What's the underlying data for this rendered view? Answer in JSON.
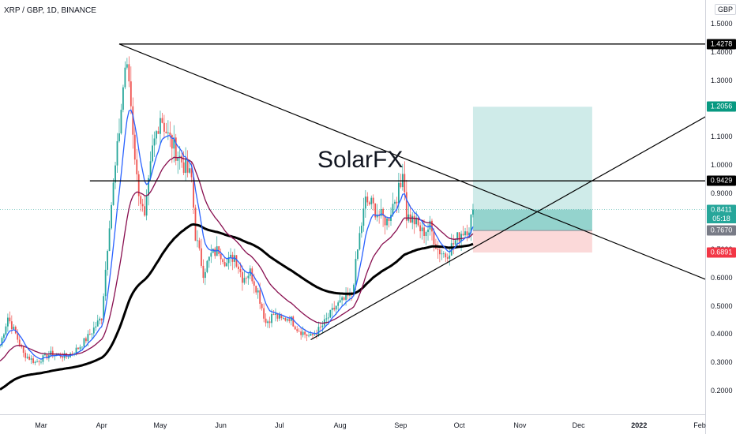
{
  "symbol_title": "XRP / GBP, 1D, BINANCE",
  "watermark": "SolarFX",
  "currency": "GBP",
  "colors": {
    "up": "#26a69a",
    "down": "#ef5350",
    "ema_fast": "#2962ff",
    "ema_mid": "#880e4f",
    "ema_slow": "#000000",
    "target_zone": "#26a69a",
    "stop_zone": "#ef5350"
  },
  "price_axis": {
    "min": 0.2,
    "max": 1.5,
    "ticks": [
      "1.5000",
      "1.4000",
      "1.3000",
      "1.2000",
      "1.1000",
      "1.0000",
      "0.9000",
      "0.8000",
      "0.7000",
      "0.6000",
      "0.5000",
      "0.4000",
      "0.3000",
      "0.2000"
    ],
    "labels": {
      "resistance_high": {
        "text": "1.4278",
        "value": 1.4278,
        "bg": "#000000"
      },
      "target": {
        "text": "1.2056",
        "value": 1.2056,
        "bg": "#089981"
      },
      "key_level": {
        "text": "0.9429",
        "value": 0.9429,
        "bg": "#000000"
      },
      "last_price": {
        "text": "0.8411",
        "value": 0.8411,
        "bg": "#26a69a"
      },
      "countdown": "05:18",
      "entry": {
        "text": "0.7670",
        "value": 0.767,
        "bg": "#787b86"
      },
      "stop": {
        "text": "0.6891",
        "value": 0.6891,
        "bg": "#f23645"
      }
    }
  },
  "time_axis": {
    "ticks": [
      {
        "label": "Mar",
        "day": 21,
        "bold": false
      },
      {
        "label": "Apr",
        "day": 52,
        "bold": false
      },
      {
        "label": "May",
        "day": 82,
        "bold": false
      },
      {
        "label": "Jun",
        "day": 113,
        "bold": false
      },
      {
        "label": "Jul",
        "day": 143,
        "bold": false
      },
      {
        "label": "Aug",
        "day": 174,
        "bold": false
      },
      {
        "label": "Sep",
        "day": 205,
        "bold": false
      },
      {
        "label": "Oct",
        "day": 235,
        "bold": false
      },
      {
        "label": "Nov",
        "day": 266,
        "bold": false
      },
      {
        "label": "Dec",
        "day": 296,
        "bold": false
      },
      {
        "label": "2022",
        "day": 327,
        "bold": true
      },
      {
        "label": "Feb",
        "day": 358,
        "bold": false
      }
    ]
  },
  "chart_data": {
    "type": "candlestick",
    "x_unit": "day index (daily bars)",
    "anchors": [
      {
        "day": 0,
        "price": 0.36
      },
      {
        "day": 4,
        "price": 0.46
      },
      {
        "day": 8,
        "price": 0.4
      },
      {
        "day": 12,
        "price": 0.33
      },
      {
        "day": 18,
        "price": 0.3
      },
      {
        "day": 26,
        "price": 0.33
      },
      {
        "day": 34,
        "price": 0.32
      },
      {
        "day": 40,
        "price": 0.35
      },
      {
        "day": 45,
        "price": 0.39
      },
      {
        "day": 52,
        "price": 0.46
      },
      {
        "day": 56,
        "price": 0.8
      },
      {
        "day": 60,
        "price": 1.05
      },
      {
        "day": 64,
        "price": 1.35
      },
      {
        "day": 66,
        "price": 1.3
      },
      {
        "day": 70,
        "price": 0.95
      },
      {
        "day": 74,
        "price": 0.8
      },
      {
        "day": 78,
        "price": 1.05
      },
      {
        "day": 82,
        "price": 1.18
      },
      {
        "day": 86,
        "price": 1.1
      },
      {
        "day": 90,
        "price": 1.05
      },
      {
        "day": 94,
        "price": 1.0
      },
      {
        "day": 98,
        "price": 0.95
      },
      {
        "day": 100,
        "price": 0.75
      },
      {
        "day": 104,
        "price": 0.62
      },
      {
        "day": 108,
        "price": 0.68
      },
      {
        "day": 112,
        "price": 0.7
      },
      {
        "day": 116,
        "price": 0.65
      },
      {
        "day": 120,
        "price": 0.68
      },
      {
        "day": 124,
        "price": 0.6
      },
      {
        "day": 128,
        "price": 0.62
      },
      {
        "day": 132,
        "price": 0.55
      },
      {
        "day": 136,
        "price": 0.44
      },
      {
        "day": 140,
        "price": 0.47
      },
      {
        "day": 144,
        "price": 0.45
      },
      {
        "day": 148,
        "price": 0.46
      },
      {
        "day": 152,
        "price": 0.42
      },
      {
        "day": 156,
        "price": 0.4
      },
      {
        "day": 159,
        "price": 0.39
      },
      {
        "day": 164,
        "price": 0.42
      },
      {
        "day": 168,
        "price": 0.46
      },
      {
        "day": 172,
        "price": 0.5
      },
      {
        "day": 176,
        "price": 0.52
      },
      {
        "day": 180,
        "price": 0.54
      },
      {
        "day": 184,
        "price": 0.75
      },
      {
        "day": 187,
        "price": 0.87
      },
      {
        "day": 190,
        "price": 0.86
      },
      {
        "day": 194,
        "price": 0.82
      },
      {
        "day": 198,
        "price": 0.8
      },
      {
        "day": 202,
        "price": 0.88
      },
      {
        "day": 205,
        "price": 0.92
      },
      {
        "day": 206,
        "price": 1.0
      },
      {
        "day": 208,
        "price": 0.82
      },
      {
        "day": 212,
        "price": 0.8
      },
      {
        "day": 216,
        "price": 0.76
      },
      {
        "day": 220,
        "price": 0.78
      },
      {
        "day": 224,
        "price": 0.7
      },
      {
        "day": 228,
        "price": 0.68
      },
      {
        "day": 232,
        "price": 0.72
      },
      {
        "day": 236,
        "price": 0.76
      },
      {
        "day": 240,
        "price": 0.78
      },
      {
        "day": 242,
        "price": 0.8411
      }
    ],
    "drawings": {
      "descending_trendline": {
        "from": {
          "day": 61,
          "price": 1.4278
        },
        "to": {
          "day": 366,
          "price": 0.58
        }
      },
      "resistance_high": {
        "from_day": 61,
        "price": 1.4278
      },
      "key_level": {
        "from_day": 46,
        "price": 0.9429
      },
      "support_trendline": {
        "from": {
          "day": 159,
          "price": 0.38
        },
        "to": {
          "day": 366,
          "price": 1.19
        }
      },
      "long_position": {
        "from_day": 242,
        "to_day": 303,
        "entry": 0.767,
        "target": 1.2056,
        "stop": 0.6891
      }
    }
  }
}
